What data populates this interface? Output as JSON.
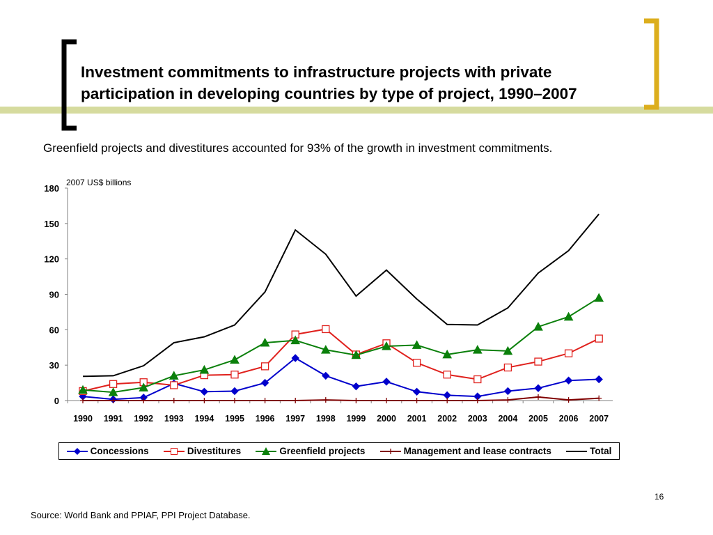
{
  "slide": {
    "title_line1": "Investment commitments to infrastructure projects with private",
    "title_line2": "participation in developing countries by type of project, 1990–2007",
    "subtitle": "Greenfield projects and divestitures accounted for 93% of the growth in investment commitments.",
    "page_number": "16",
    "source": "Source: World Bank and PPIAF, PPI Project Database.",
    "accent_color": "#DCAE1D",
    "band_color": "#D6DB9E"
  },
  "chart_data": {
    "type": "line",
    "title": "",
    "ylabel": "2007 US$ billions",
    "xlabel": "",
    "ylim": [
      0,
      180
    ],
    "yticks": [
      0,
      30,
      60,
      90,
      120,
      150,
      180
    ],
    "grid": false,
    "legend_position": "bottom",
    "categories": [
      "1990",
      "1991",
      "1992",
      "1993",
      "1994",
      "1995",
      "1996",
      "1997",
      "1998",
      "1999",
      "2000",
      "2001",
      "2002",
      "2003",
      "2004",
      "2005",
      "2006",
      "2007"
    ],
    "series": [
      {
        "name": "Concessions",
        "color": "#0000CC",
        "marker": "diamond",
        "values": [
          3.5,
          1,
          2.5,
          14.5,
          7.5,
          8,
          15,
          36,
          21,
          12,
          16,
          7.5,
          4.5,
          3.5,
          8,
          10.5,
          17,
          18
        ]
      },
      {
        "name": "Divestitures",
        "color": "#E0211D",
        "marker": "square-open",
        "values": [
          8,
          14,
          15.5,
          13,
          21.5,
          22,
          29,
          56,
          60.5,
          39,
          48.5,
          32,
          22,
          18,
          28,
          33,
          40,
          52.5
        ]
      },
      {
        "name": "Greenfield projects",
        "color": "#0B800B",
        "marker": "triangle",
        "values": [
          9,
          7,
          11,
          21,
          26,
          34.5,
          49,
          51,
          43,
          38.5,
          46,
          47,
          39,
          43,
          42,
          62.5,
          71,
          87
        ]
      },
      {
        "name": "Management and lease contracts",
        "color": "#800000",
        "marker": "plus",
        "values": [
          0,
          0,
          0,
          0,
          0,
          0,
          0,
          0,
          0.5,
          0,
          0,
          0,
          0,
          0,
          0.5,
          3,
          0.5,
          2
        ]
      },
      {
        "name": "Total",
        "color": "#000000",
        "marker": "none",
        "values": [
          20.5,
          21,
          29.5,
          49,
          54,
          64,
          92,
          144.5,
          124,
          88.5,
          110.5,
          86,
          64.5,
          64,
          78.5,
          108,
          127,
          158
        ]
      }
    ]
  }
}
